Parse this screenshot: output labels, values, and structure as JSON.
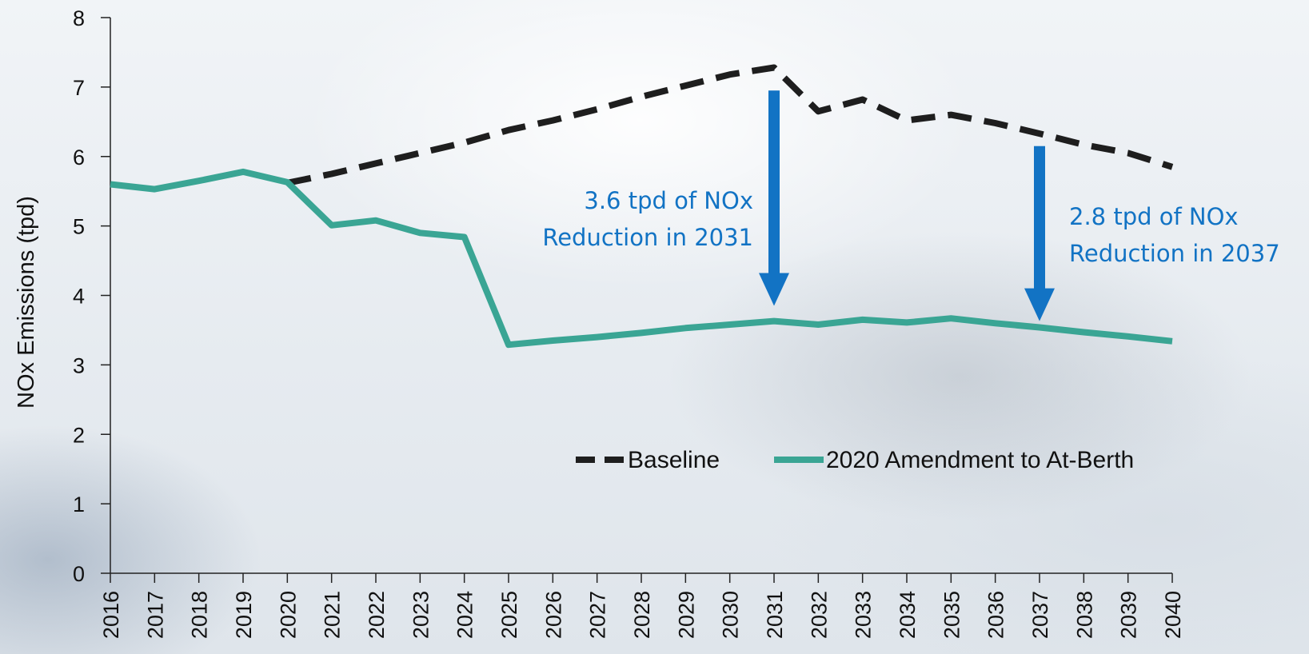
{
  "chart_data": {
    "type": "line",
    "title": "",
    "xlabel": "",
    "ylabel": "NOx Emissions (tpd)",
    "ylim": [
      0,
      8
    ],
    "y_ticks": [
      "0",
      "1",
      "2",
      "3",
      "4",
      "5",
      "6",
      "7",
      "8"
    ],
    "categories": [
      "2016",
      "2017",
      "2018",
      "2019",
      "2020",
      "2021",
      "2022",
      "2023",
      "2024",
      "2025",
      "2026",
      "2027",
      "2028",
      "2029",
      "2030",
      "2031",
      "2032",
      "2033",
      "2034",
      "2035",
      "2036",
      "2037",
      "2038",
      "2039",
      "2040"
    ],
    "grid": false,
    "legend_position": "bottom-right",
    "series": [
      {
        "name": "Baseline",
        "style": "dashed",
        "color": "#1e1e1e",
        "start_index": 4,
        "values": [
          null,
          null,
          null,
          null,
          5.62,
          5.75,
          5.9,
          6.05,
          6.2,
          6.38,
          6.52,
          6.68,
          6.86,
          7.02,
          7.18,
          7.28,
          6.65,
          6.82,
          6.52,
          6.6,
          6.48,
          6.33,
          6.17,
          6.05,
          5.85
        ]
      },
      {
        "name": "2020 Amendment to At-Berth",
        "style": "solid",
        "color": "#3aa594",
        "values": [
          5.6,
          5.53,
          5.65,
          5.78,
          5.63,
          5.01,
          5.08,
          4.9,
          4.84,
          3.29,
          3.35,
          3.4,
          3.46,
          3.53,
          3.58,
          3.63,
          3.58,
          3.65,
          3.61,
          3.67,
          3.6,
          3.54,
          3.47,
          3.41,
          3.34
        ]
      }
    ],
    "annotations": [
      {
        "line1": "3.6 tpd of NOx",
        "line2": "Reduction in 2031",
        "arrow_x": "2031",
        "arrow_from": 6.95,
        "arrow_to": 3.85,
        "color": "#1273c4"
      },
      {
        "line1": "2.8 tpd of NOx",
        "line2": "Reduction in 2037",
        "arrow_x": "2037",
        "arrow_from": 6.15,
        "arrow_to": 3.63,
        "color": "#1273c4"
      }
    ]
  }
}
